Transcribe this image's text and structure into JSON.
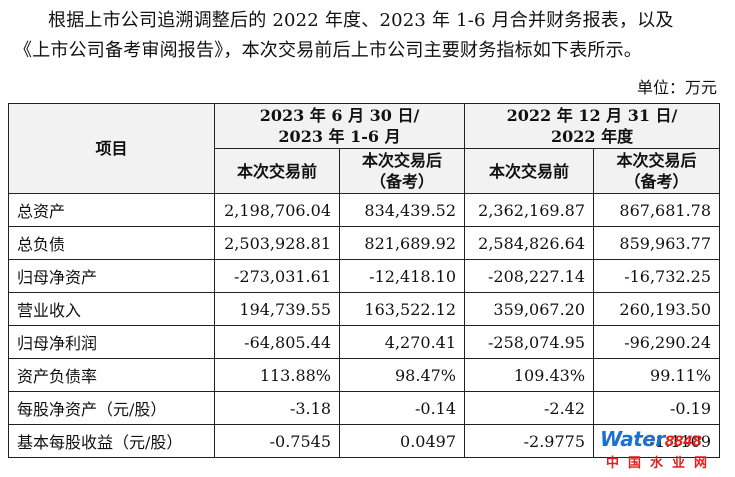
{
  "intro": {
    "line1": "根据上市公司追溯调整后的 2022 年度、2023 年 1-6 月合并财务报表，以及",
    "line2": "《上市公司备考审阅报告》，本次交易前后上市公司主要财务指标如下表所示。"
  },
  "unit_label": "单位：万元",
  "table": {
    "item_header": "项目",
    "periods": [
      {
        "line1": "2023 年 6 月 30 日/",
        "line2": "2023 年 1-6 月"
      },
      {
        "line1": "2022 年 12 月 31 日/",
        "line2": "2022 年度"
      }
    ],
    "sub_headers": [
      {
        "line1": "本次交易前",
        "line2": ""
      },
      {
        "line1": "本次交易后",
        "line2": "（备考）"
      },
      {
        "line1": "本次交易前",
        "line2": ""
      },
      {
        "line1": "本次交易后",
        "line2": "（备考）"
      }
    ],
    "rows": [
      {
        "label": "总资产",
        "values": [
          "2,198,706.04",
          "834,439.52",
          "2,362,169.87",
          "867,681.78"
        ]
      },
      {
        "label": "总负债",
        "values": [
          "2,503,928.81",
          "821,689.92",
          "2,584,826.64",
          "859,963.77"
        ]
      },
      {
        "label": "归母净资产",
        "values": [
          "-273,031.61",
          "-12,418.10",
          "-208,227.14",
          "-16,732.25"
        ]
      },
      {
        "label": "营业收入",
        "values": [
          "194,739.55",
          "163,522.12",
          "359,067.20",
          "260,193.50"
        ]
      },
      {
        "label": "归母净利润",
        "values": [
          "-64,805.44",
          "4,270.41",
          "-258,074.95",
          "-96,290.24"
        ]
      },
      {
        "label": "资产负债率",
        "values": [
          "113.88%",
          "98.47%",
          "109.43%",
          "99.11%"
        ]
      },
      {
        "label": "每股净资产（元/股）",
        "values": [
          "-3.18",
          "-0.14",
          "-2.42",
          "-0.19"
        ]
      },
      {
        "label": "基本每股收益（元/股）",
        "values": [
          "-0.7545",
          "0.0497",
          "-2.9775",
          "-1.1109"
        ]
      }
    ]
  },
  "watermark": {
    "brand": "Water",
    "number": "8848",
    "tagline": "中国水业网"
  }
}
